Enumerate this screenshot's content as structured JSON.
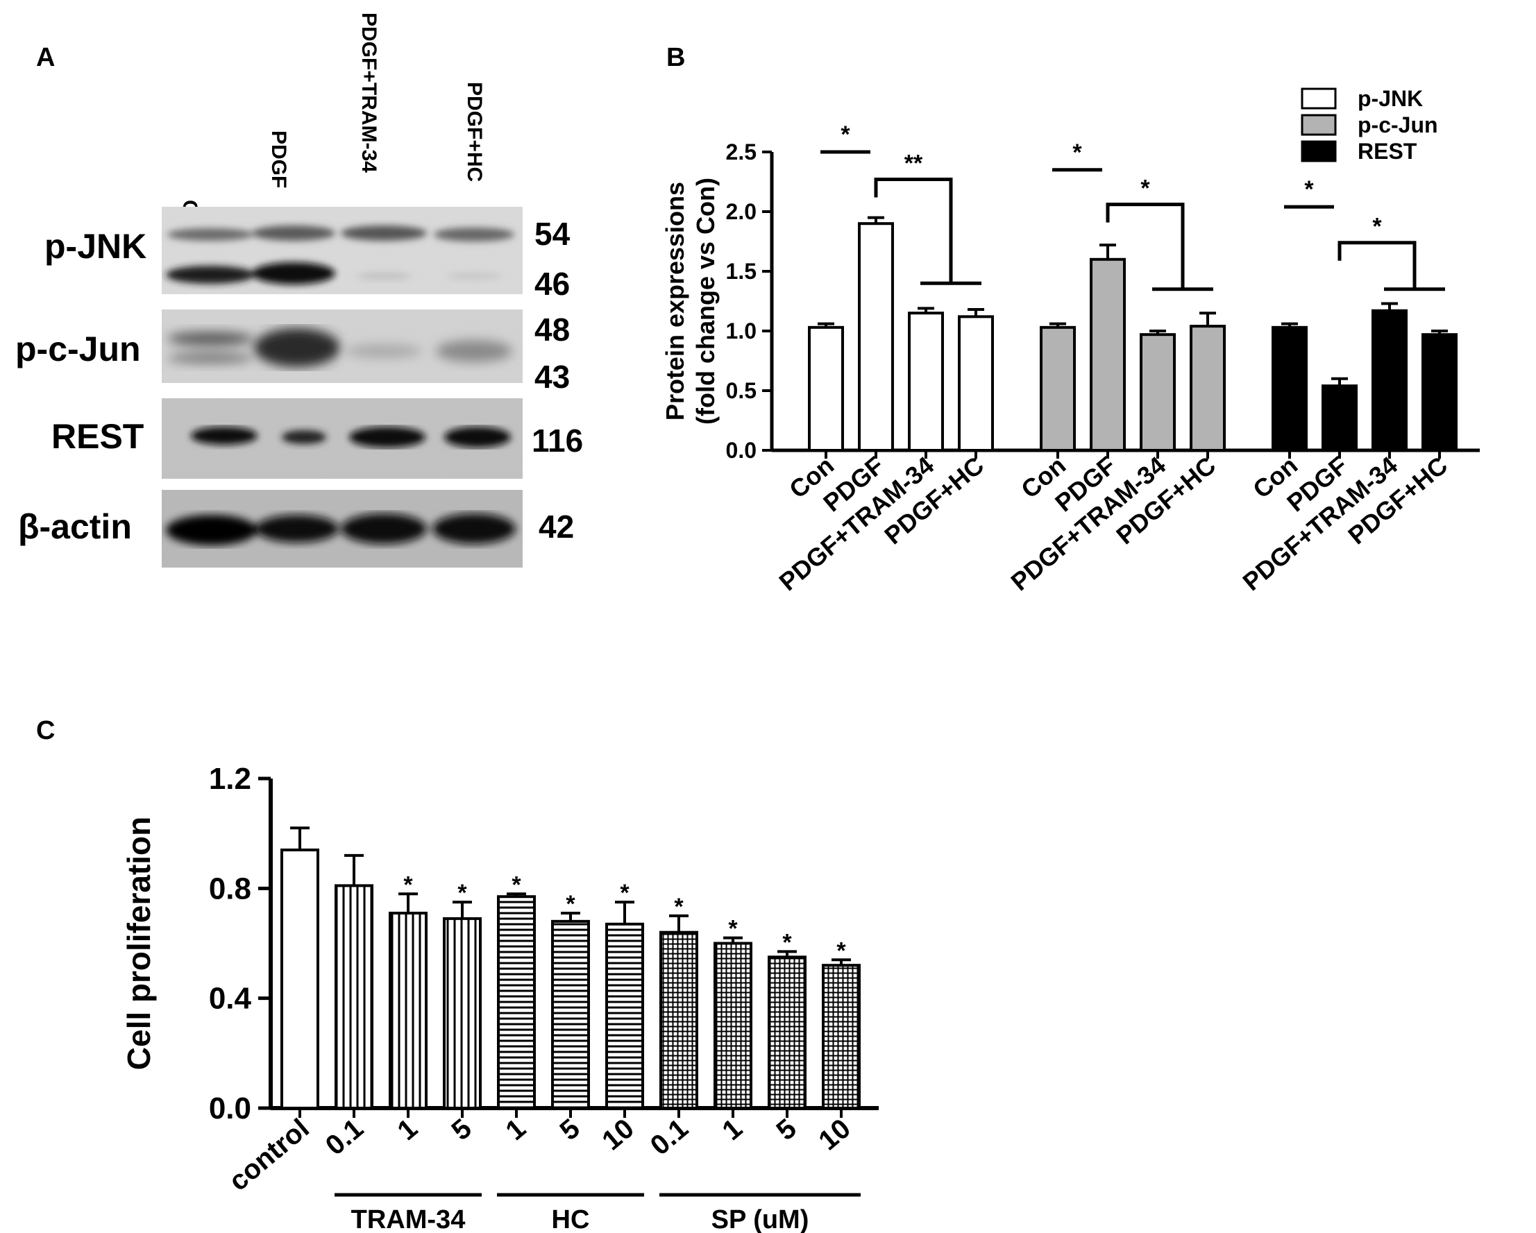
{
  "panels": {
    "a": "A",
    "b": "B",
    "c": "C"
  },
  "western_blot": {
    "lanes": [
      "Con",
      "PDGF",
      "PDGF+TRAM-34",
      "PDGF+HC"
    ],
    "proteins": [
      {
        "name": "p-JNK",
        "mw": [
          "54",
          "46"
        ]
      },
      {
        "name": "p-c-Jun",
        "mw": [
          "48",
          "43"
        ]
      },
      {
        "name": "REST",
        "mw": [
          "116"
        ]
      },
      {
        "name": "β-actin",
        "mw": [
          "42"
        ]
      }
    ]
  },
  "chart_data": [
    {
      "type": "bar",
      "ylabel_line1": "Protein expressions",
      "ylabel_line2": "(fold change vs Con)",
      "categories": [
        "Con",
        "PDGF",
        "PDGF+TRAM-34",
        "PDGF+HC"
      ],
      "ylim": [
        0,
        2.5
      ],
      "yticks": [
        "0.0",
        "0.5",
        "1.0",
        "1.5",
        "2.0",
        "2.5"
      ],
      "legend": "top-right",
      "series": [
        {
          "name": "p-JNK",
          "color": "#ffffff",
          "values": [
            1.03,
            1.9,
            1.15,
            1.12
          ],
          "errors": [
            0.03,
            0.05,
            0.04,
            0.06
          ]
        },
        {
          "name": "p-c-Jun",
          "color": "#b3b3b3",
          "values": [
            1.03,
            1.6,
            0.97,
            1.04
          ],
          "errors": [
            0.03,
            0.12,
            0.03,
            0.11
          ]
        },
        {
          "name": "REST",
          "color": "#000000",
          "values": [
            1.03,
            0.54,
            1.17,
            0.97
          ],
          "errors": [
            0.03,
            0.06,
            0.06,
            0.03
          ]
        }
      ],
      "significance": [
        {
          "series": "p-JNK",
          "pair": "Con vs PDGF",
          "mark": "*"
        },
        {
          "series": "p-JNK",
          "pair": "PDGF vs PDGF+TRAM-34/PDGF+HC",
          "mark": "**"
        },
        {
          "series": "p-c-Jun",
          "pair": "Con vs PDGF",
          "mark": "*"
        },
        {
          "series": "p-c-Jun",
          "pair": "PDGF vs PDGF+TRAM-34/PDGF+HC",
          "mark": "*"
        },
        {
          "series": "REST",
          "pair": "Con vs PDGF",
          "mark": "*"
        },
        {
          "series": "REST",
          "pair": "PDGF vs PDGF+TRAM-34/PDGF+HC",
          "mark": "*"
        }
      ]
    },
    {
      "type": "bar",
      "ylabel": "Cell proliferation",
      "ylim": [
        0,
        1.2
      ],
      "yticks": [
        "0.0",
        "0.4",
        "0.8",
        "1.2"
      ],
      "categories": [
        "control",
        "0.1",
        "1",
        "5",
        "1",
        "5",
        "10",
        "0.1",
        "1",
        "5",
        "10"
      ],
      "groups": [
        {
          "label": "TRAM-34",
          "from": 1,
          "to": 3
        },
        {
          "label": "HC",
          "from": 4,
          "to": 6
        },
        {
          "label": "SP (uM)",
          "from": 7,
          "to": 10
        }
      ],
      "values": [
        0.94,
        0.81,
        0.71,
        0.69,
        0.77,
        0.68,
        0.67,
        0.64,
        0.6,
        0.55,
        0.52
      ],
      "errors": [
        0.08,
        0.11,
        0.07,
        0.06,
        0.01,
        0.03,
        0.08,
        0.06,
        0.02,
        0.02,
        0.02
      ],
      "patterns": [
        "none",
        "vertical",
        "vertical",
        "vertical",
        "horizontal",
        "horizontal",
        "horizontal",
        "grid",
        "grid",
        "grid",
        "grid"
      ],
      "significance_mark": "*",
      "significant": [
        false,
        false,
        true,
        true,
        true,
        true,
        true,
        true,
        true,
        true,
        true
      ]
    }
  ]
}
